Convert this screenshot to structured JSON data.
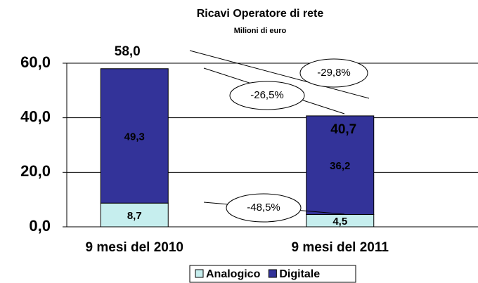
{
  "chart_data": {
    "type": "stacked_bar",
    "title": "Ricavi Operatore di rete",
    "subtitle": "Milioni di euro",
    "categories": [
      "9 mesi del 2010",
      "9 mesi del 2011"
    ],
    "series": [
      {
        "name": "Analogico",
        "color": "#c6eeee",
        "values": [
          8.7,
          4.5
        ],
        "value_labels": [
          "8,7",
          "4,5"
        ]
      },
      {
        "name": "Digitale",
        "color": "#333399",
        "values": [
          49.3,
          36.2
        ],
        "value_labels": [
          "49,3",
          "36,2"
        ]
      }
    ],
    "totals": {
      "values": [
        58.0,
        40.7
      ],
      "value_labels": [
        "58,0",
        "40,7"
      ]
    },
    "annotations": [
      "-29,8%",
      "-26,5%",
      "-48,5%"
    ],
    "ylim": [
      0,
      60
    ],
    "yticks": [
      {
        "value": 0,
        "label": "0,0"
      },
      {
        "value": 20,
        "label": "20,0"
      },
      {
        "value": 40,
        "label": "40,0"
      },
      {
        "value": 60,
        "label": "60,0"
      }
    ],
    "grid": true,
    "legend": "bottom"
  }
}
